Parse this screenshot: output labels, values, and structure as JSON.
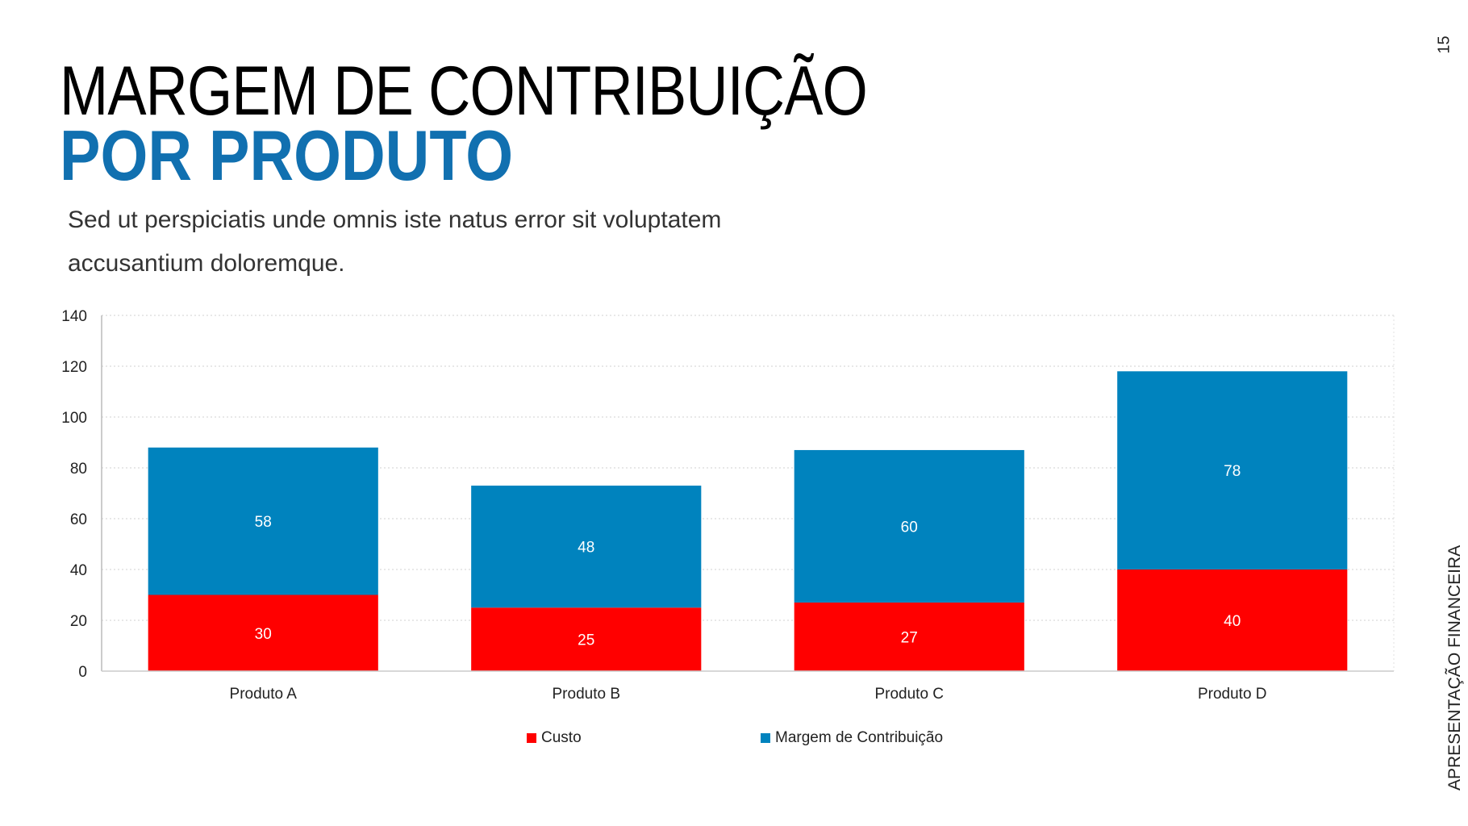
{
  "header": {
    "title_line1": "MARGEM DE CONTRIBUIÇÃO",
    "title_line2": "POR PRODUTO",
    "subtitle": "Sed ut perspiciatis unde omnis iste natus error sit voluptatem accusantium doloremque."
  },
  "page_number": "15",
  "side_label": "APRESENTAÇÃO FINANCEIRA",
  "colors": {
    "accent": "#1170b0",
    "custo": "#ff0000",
    "margem": "#0083be"
  },
  "chart_data": {
    "type": "bar",
    "stacked": true,
    "title": "",
    "xlabel": "",
    "ylabel": "",
    "categories": [
      "Produto A",
      "Produto B",
      "Produto C",
      "Produto D"
    ],
    "series": [
      {
        "name": "Custo",
        "values": [
          30,
          25,
          27,
          40
        ]
      },
      {
        "name": "Margem de Contribuição",
        "values": [
          58,
          48,
          60,
          78
        ]
      }
    ],
    "ylim": [
      0,
      140
    ],
    "yticks": [
      0,
      20,
      40,
      60,
      80,
      100,
      120,
      140
    ],
    "grid": true,
    "legend": "bottom"
  }
}
